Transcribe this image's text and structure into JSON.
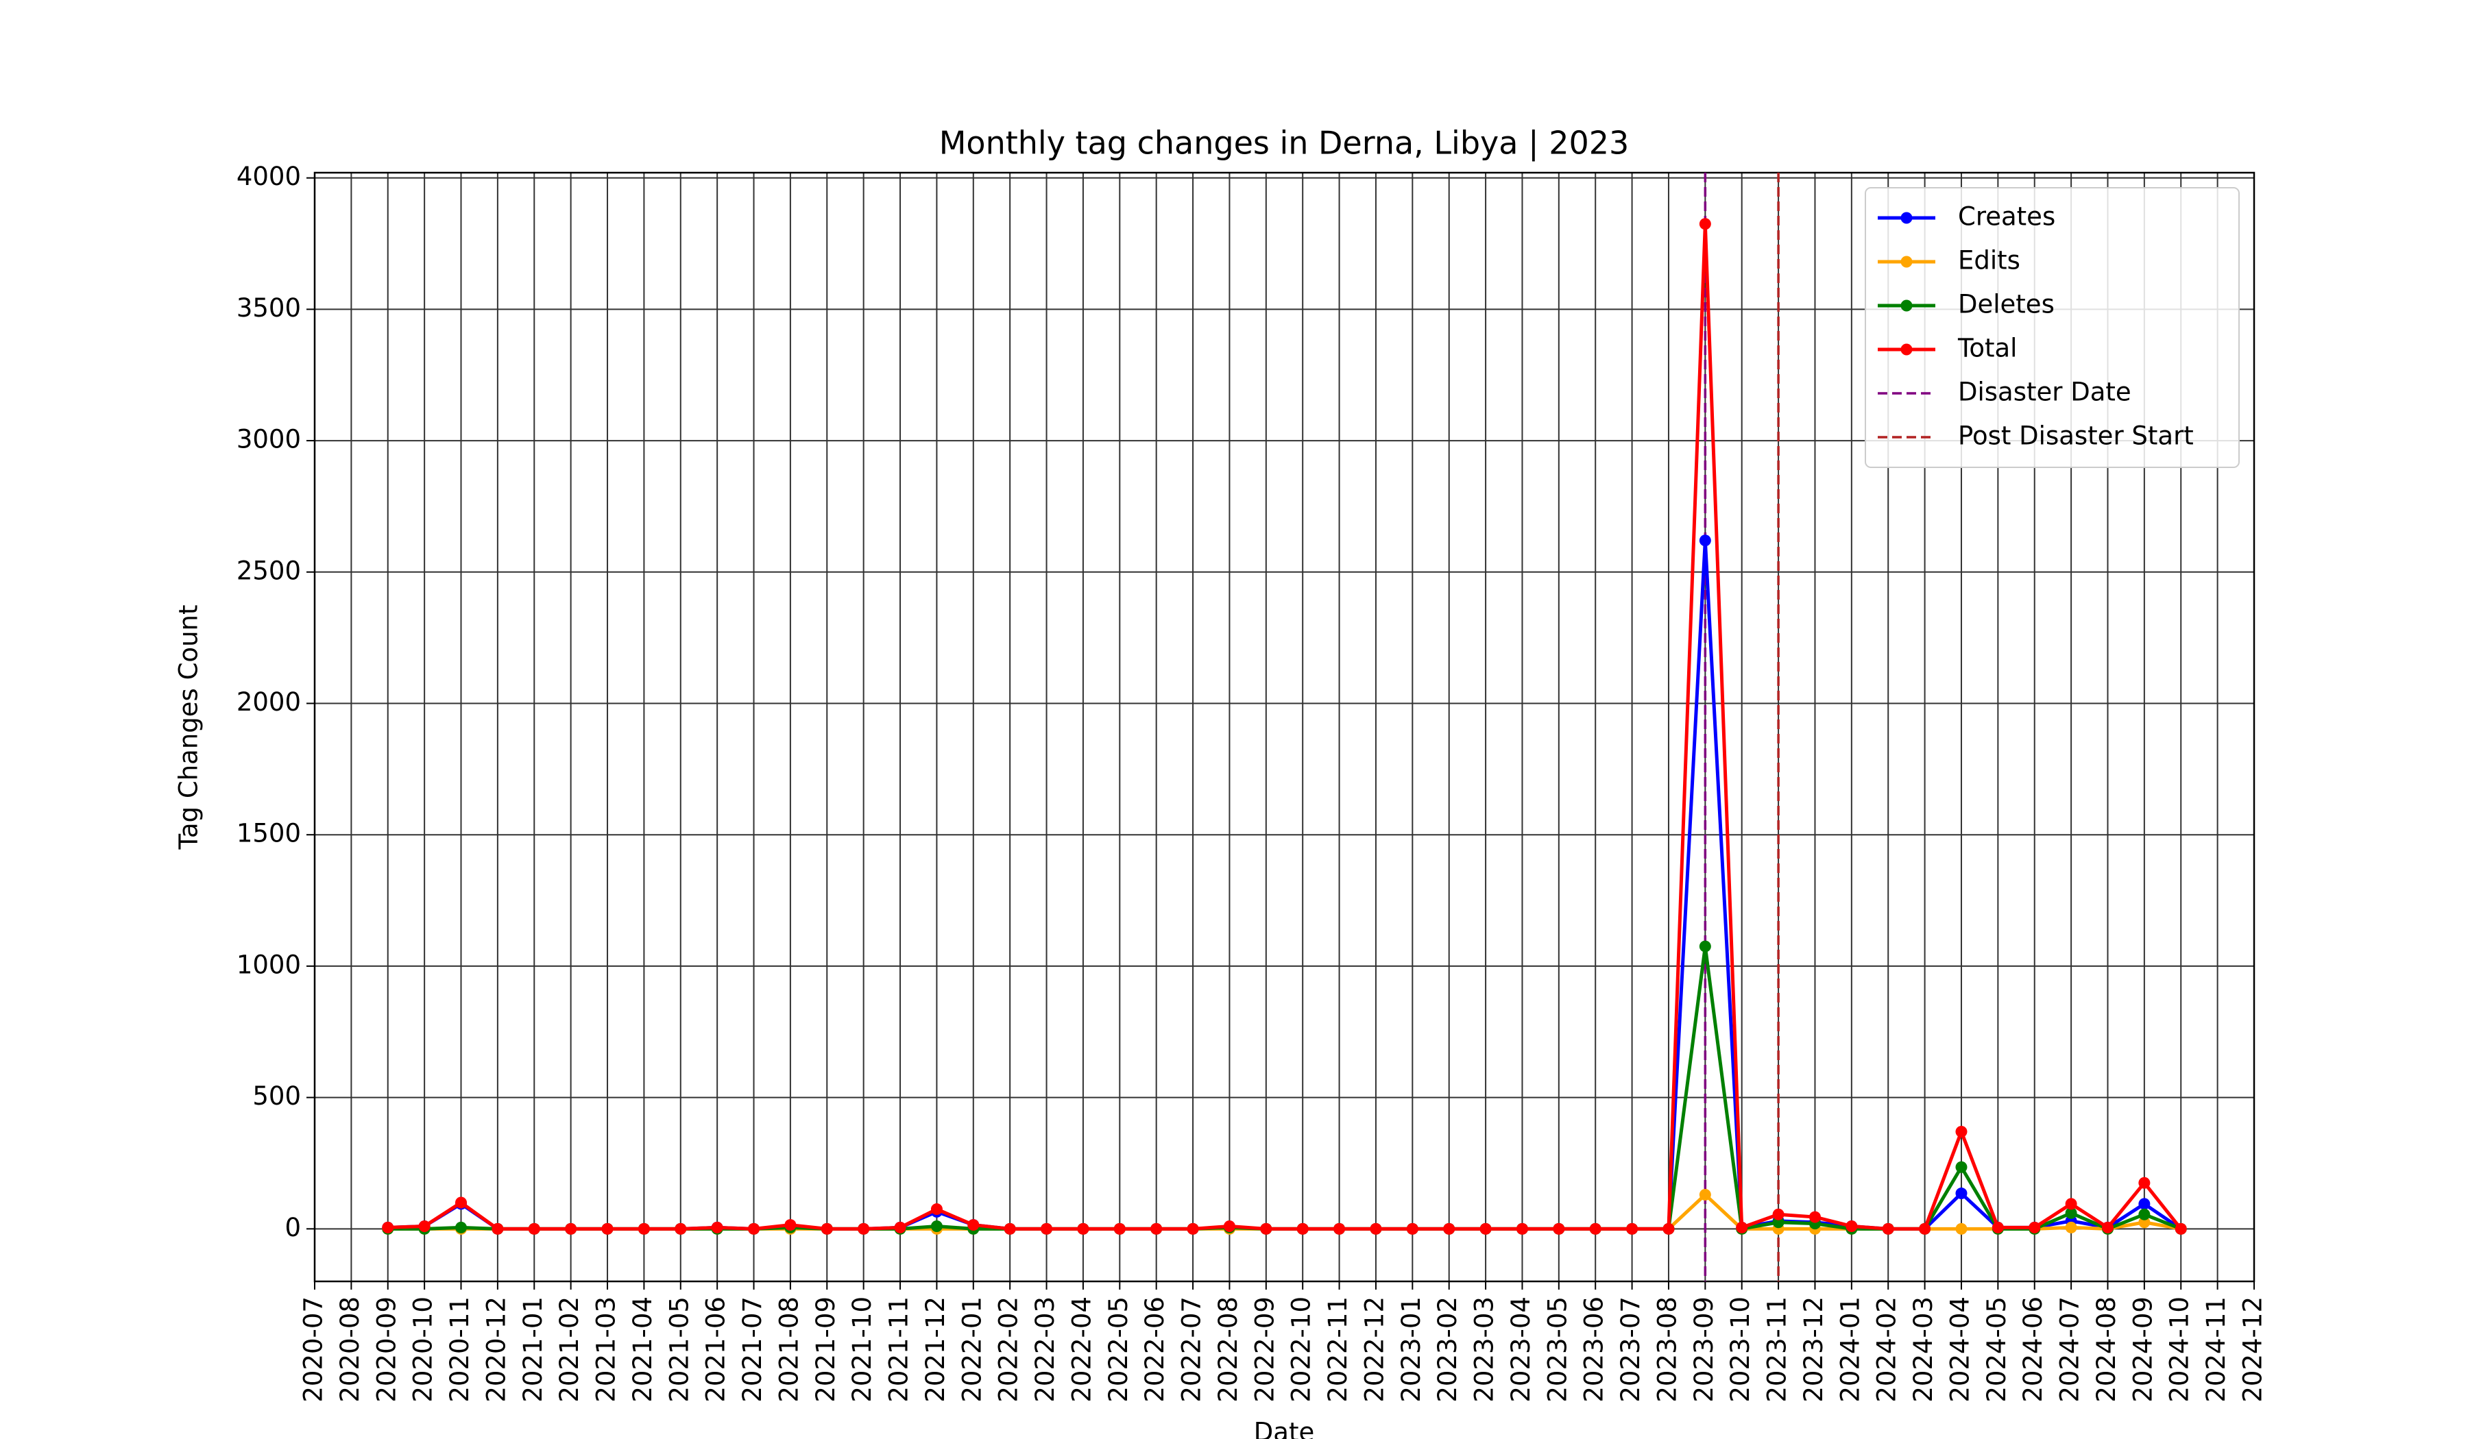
{
  "chart_data": {
    "type": "line",
    "title": "Monthly tag changes in Derna, Libya | 2023",
    "xlabel": "Date",
    "ylabel": "Tag Changes Count",
    "x": [
      "2020-09",
      "2020-10",
      "2020-11",
      "2020-12",
      "2021-01",
      "2021-02",
      "2021-03",
      "2021-04",
      "2021-05",
      "2021-06",
      "2021-07",
      "2021-08",
      "2021-09",
      "2021-10",
      "2021-11",
      "2021-12",
      "2022-01",
      "2022-02",
      "2022-03",
      "2022-04",
      "2022-05",
      "2022-06",
      "2022-07",
      "2022-08",
      "2022-09",
      "2022-10",
      "2022-11",
      "2022-12",
      "2023-01",
      "2023-02",
      "2023-03",
      "2023-04",
      "2023-05",
      "2023-06",
      "2023-07",
      "2023-08",
      "2023-09",
      "2023-10",
      "2023-11",
      "2023-12",
      "2024-01",
      "2024-02",
      "2024-03",
      "2024-04",
      "2024-05",
      "2024-06",
      "2024-07",
      "2024-08",
      "2024-09",
      "2024-10"
    ],
    "series": [
      {
        "name": "Creates",
        "color": "#0000ff",
        "values": [
          5,
          10,
          95,
          0,
          0,
          0,
          0,
          0,
          0,
          5,
          0,
          10,
          0,
          0,
          5,
          65,
          15,
          0,
          0,
          0,
          0,
          0,
          0,
          5,
          0,
          0,
          0,
          0,
          0,
          0,
          0,
          0,
          0,
          0,
          0,
          0,
          2620,
          5,
          30,
          25,
          10,
          0,
          0,
          135,
          5,
          5,
          30,
          5,
          95,
          0
        ]
      },
      {
        "name": "Edits",
        "color": "#ffa500",
        "values": [
          0,
          0,
          0,
          0,
          0,
          0,
          0,
          0,
          0,
          0,
          0,
          0,
          0,
          0,
          0,
          0,
          0,
          0,
          0,
          0,
          0,
          0,
          0,
          0,
          0,
          0,
          0,
          0,
          0,
          0,
          0,
          0,
          0,
          0,
          0,
          0,
          130,
          0,
          0,
          0,
          0,
          0,
          0,
          0,
          0,
          0,
          5,
          0,
          25,
          0
        ]
      },
      {
        "name": "Deletes",
        "color": "#008000",
        "values": [
          0,
          0,
          5,
          0,
          0,
          0,
          0,
          0,
          0,
          0,
          0,
          5,
          0,
          0,
          0,
          10,
          0,
          0,
          0,
          0,
          0,
          0,
          0,
          5,
          0,
          0,
          0,
          0,
          0,
          0,
          0,
          0,
          0,
          0,
          0,
          0,
          1075,
          0,
          25,
          20,
          0,
          0,
          0,
          235,
          0,
          0,
          60,
          0,
          55,
          0
        ]
      },
      {
        "name": "Total",
        "color": "#ff0000",
        "values": [
          5,
          10,
          100,
          0,
          0,
          0,
          0,
          0,
          0,
          5,
          0,
          15,
          0,
          0,
          5,
          75,
          15,
          0,
          0,
          0,
          0,
          0,
          0,
          10,
          0,
          0,
          0,
          0,
          0,
          0,
          0,
          0,
          0,
          0,
          0,
          0,
          3825,
          5,
          55,
          45,
          10,
          0,
          0,
          370,
          5,
          5,
          95,
          5,
          175,
          0
        ]
      }
    ],
    "vlines": [
      {
        "name": "Disaster Date",
        "x": "2023-09",
        "color": "#800080"
      },
      {
        "name": "Post Disaster Start",
        "x": "2023-11",
        "color": "#b22222"
      }
    ],
    "xlim": [
      "2020-07",
      "2024-12"
    ],
    "xticks": [
      "2020-07",
      "2020-08",
      "2020-09",
      "2020-10",
      "2020-11",
      "2020-12",
      "2021-01",
      "2021-02",
      "2021-03",
      "2021-04",
      "2021-05",
      "2021-06",
      "2021-07",
      "2021-08",
      "2021-09",
      "2021-10",
      "2021-11",
      "2021-12",
      "2022-01",
      "2022-02",
      "2022-03",
      "2022-04",
      "2022-05",
      "2022-06",
      "2022-07",
      "2022-08",
      "2022-09",
      "2022-10",
      "2022-11",
      "2022-12",
      "2023-01",
      "2023-02",
      "2023-03",
      "2023-04",
      "2023-05",
      "2023-06",
      "2023-07",
      "2023-08",
      "2023-09",
      "2023-10",
      "2023-11",
      "2023-12",
      "2024-01",
      "2024-02",
      "2024-03",
      "2024-04",
      "2024-05",
      "2024-06",
      "2024-07",
      "2024-08",
      "2024-09",
      "2024-10",
      "2024-11",
      "2024-12"
    ],
    "ylim": [
      -200,
      4020
    ],
    "yticks": [
      0,
      500,
      1000,
      1500,
      2000,
      2500,
      3000,
      3500,
      4000
    ],
    "grid": true,
    "legend": "upper right"
  }
}
